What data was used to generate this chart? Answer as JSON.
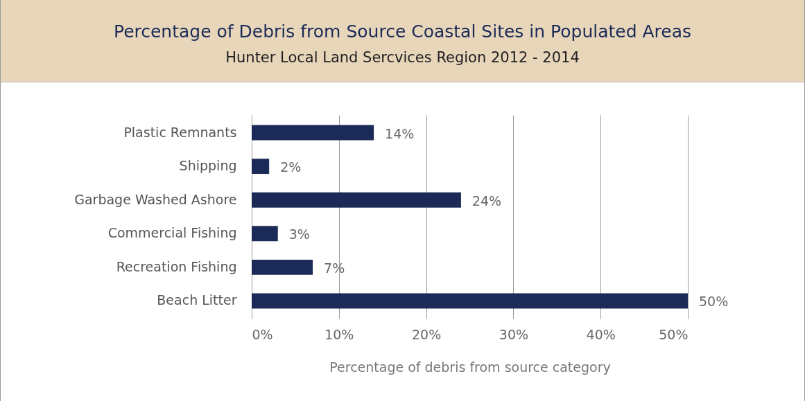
{
  "chart_data": {
    "type": "bar",
    "orientation": "horizontal",
    "title": "Percentage of Debris from Source Coastal Sites in Populated Areas",
    "subtitle": "Hunter Local Land Sercvices Region 2012 - 2014",
    "xlabel": "Percentage of debris from source category",
    "categories": [
      "Plastic Remnants",
      "Shipping",
      "Garbage Washed Ashore",
      "Commercial Fishing",
      "Recreation Fishing",
      "Beach Litter"
    ],
    "values": [
      14,
      2,
      24,
      3,
      7,
      50
    ],
    "value_labels": [
      "14%",
      "2%",
      "24%",
      "3%",
      "7%",
      "50%"
    ],
    "color": "#1b2a57",
    "xlim": [
      0,
      50
    ],
    "xticks": [
      {
        "value": 0,
        "label": "0%"
      },
      {
        "value": 10,
        "label": "10%"
      },
      {
        "value": 20,
        "label": "20%"
      },
      {
        "value": 30,
        "label": "30%"
      },
      {
        "value": 40,
        "label": "40%"
      },
      {
        "value": 50,
        "label": "50%"
      }
    ],
    "grid": "x"
  }
}
